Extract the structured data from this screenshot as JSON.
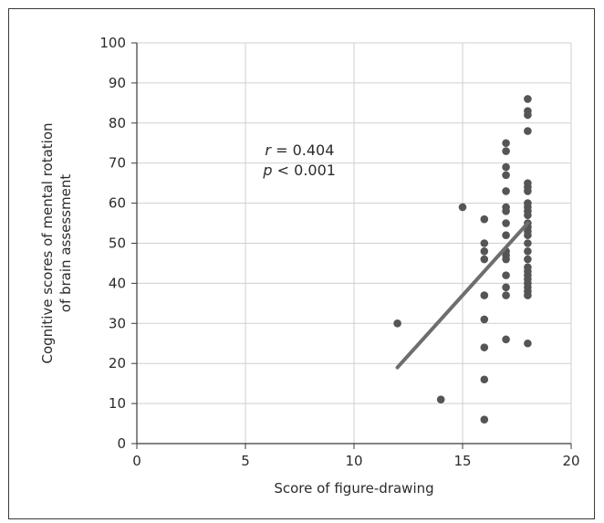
{
  "chart_data": {
    "type": "scatter",
    "title": "",
    "xlabel": "Score of figure-drawing",
    "ylabel_lines": [
      "Cognitive scores of mental rotation",
      "of brain assessment"
    ],
    "xlim": [
      0,
      20
    ],
    "ylim": [
      0,
      100
    ],
    "xticks": [
      0,
      5,
      10,
      15,
      20
    ],
    "yticks": [
      0,
      10,
      20,
      30,
      40,
      50,
      60,
      70,
      80,
      90,
      100
    ],
    "grid": true,
    "legend": "none",
    "colors": {
      "points": "#555555",
      "line": "#6e6e6e",
      "grid": "#cfcfcf",
      "axis": "#3a3a3a"
    },
    "points": [
      [
        12,
        30
      ],
      [
        14,
        11
      ],
      [
        15,
        59
      ],
      [
        16,
        56
      ],
      [
        16,
        50
      ],
      [
        16,
        48
      ],
      [
        16,
        46
      ],
      [
        16,
        37
      ],
      [
        16,
        31
      ],
      [
        16,
        24
      ],
      [
        16,
        16
      ],
      [
        16,
        6
      ],
      [
        17,
        75
      ],
      [
        17,
        73
      ],
      [
        17,
        69
      ],
      [
        17,
        67
      ],
      [
        17,
        63
      ],
      [
        17,
        59
      ],
      [
        17,
        58
      ],
      [
        17,
        55
      ],
      [
        17,
        52
      ],
      [
        17,
        48
      ],
      [
        17,
        47
      ],
      [
        17,
        46
      ],
      [
        17,
        42
      ],
      [
        17,
        39
      ],
      [
        17,
        37
      ],
      [
        17,
        26
      ],
      [
        18,
        86
      ],
      [
        18,
        83
      ],
      [
        18,
        82
      ],
      [
        18,
        78
      ],
      [
        18,
        65
      ],
      [
        18,
        64
      ],
      [
        18,
        63
      ],
      [
        18,
        60
      ],
      [
        18,
        59
      ],
      [
        18,
        58
      ],
      [
        18,
        57
      ],
      [
        18,
        55
      ],
      [
        18,
        54
      ],
      [
        18,
        53
      ],
      [
        18,
        52
      ],
      [
        18,
        50
      ],
      [
        18,
        48
      ],
      [
        18,
        46
      ],
      [
        18,
        44
      ],
      [
        18,
        43
      ],
      [
        18,
        42
      ],
      [
        18,
        41
      ],
      [
        18,
        40
      ],
      [
        18,
        39
      ],
      [
        18,
        38
      ],
      [
        18,
        37
      ],
      [
        18,
        25
      ]
    ],
    "regression_line": {
      "x": [
        12,
        18
      ],
      "y": [
        19,
        55
      ]
    },
    "annotations": {
      "r_var": "r",
      "r_rest": " = 0.404",
      "p_var": "p",
      "p_rest": " < 0.001",
      "anchor_x": 5.9,
      "anchor_y_r": 72,
      "anchor_y_p": 67
    }
  }
}
